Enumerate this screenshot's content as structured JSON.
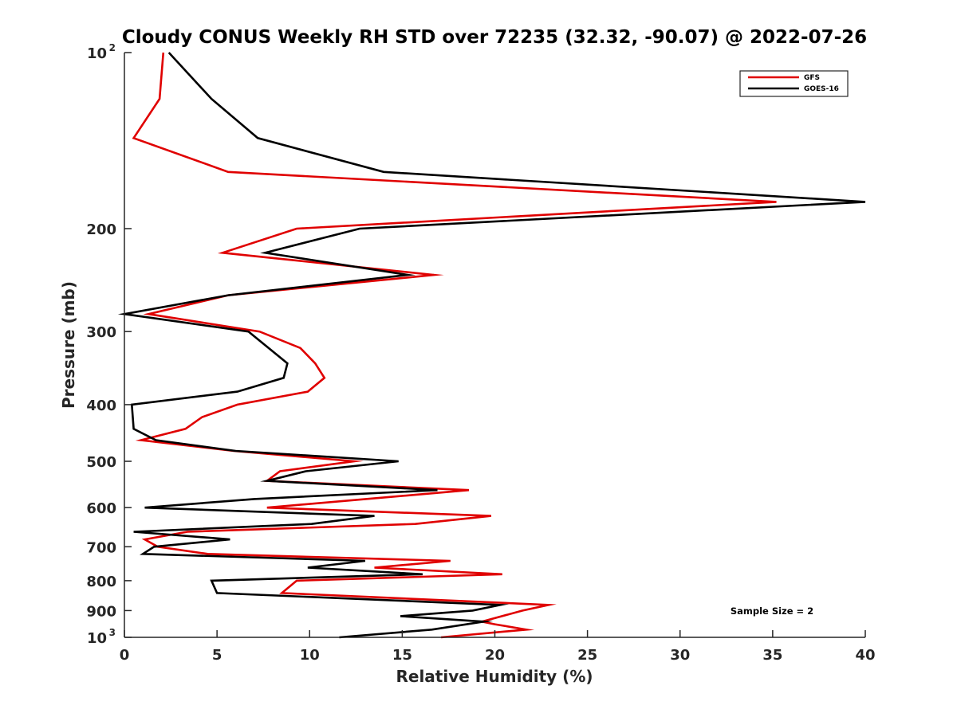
{
  "chart_data": {
    "type": "line",
    "title": "Cloudy CONUS Weekly RH STD over 72235 (32.32, -90.07) @ 2022-07-26",
    "xlabel": "Relative Humidity (%)",
    "ylabel": "Pressure (mb)",
    "xlim": [
      0,
      40
    ],
    "ylim": [
      100,
      1000
    ],
    "y_scale": "log",
    "y_reversed": true,
    "grid": false,
    "x_ticks": [
      0,
      5,
      10,
      15,
      20,
      25,
      30,
      35,
      40
    ],
    "x_tick_labels": [
      "0",
      "5",
      "10",
      "15",
      "20",
      "25",
      "30",
      "35",
      "40"
    ],
    "y_ticks": [
      100,
      200,
      300,
      400,
      500,
      600,
      700,
      800,
      900,
      1000
    ],
    "y_tick_labels": [
      {
        "base": "10",
        "exp": "2"
      },
      {
        "base": "200",
        "exp": ""
      },
      {
        "base": "300",
        "exp": ""
      },
      {
        "base": "400",
        "exp": ""
      },
      {
        "base": "500",
        "exp": ""
      },
      {
        "base": "600",
        "exp": ""
      },
      {
        "base": "700",
        "exp": ""
      },
      {
        "base": "800",
        "exp": ""
      },
      {
        "base": "900",
        "exp": ""
      },
      {
        "base": "10",
        "exp": "3"
      }
    ],
    "legend": {
      "position": "top-right",
      "entries": [
        "GFS",
        "GOES-16"
      ]
    },
    "annotation": "Sample Size = 2",
    "series": [
      {
        "name": "GFS",
        "color": "#e00000",
        "points": [
          [
            2.1,
            100
          ],
          [
            1.9,
            120
          ],
          [
            0.5,
            140
          ],
          [
            5.6,
            160
          ],
          [
            35.2,
            180
          ],
          [
            9.3,
            200
          ],
          [
            5.3,
            220
          ],
          [
            16.7,
            240
          ],
          [
            5.6,
            260
          ],
          [
            1.3,
            280
          ],
          [
            7.3,
            300
          ],
          [
            9.5,
            320
          ],
          [
            10.3,
            340
          ],
          [
            10.8,
            360
          ],
          [
            9.9,
            380
          ],
          [
            6.1,
            400
          ],
          [
            4.2,
            420
          ],
          [
            3.3,
            440
          ],
          [
            0.9,
            460
          ],
          [
            5.9,
            480
          ],
          [
            12.4,
            500
          ],
          [
            8.4,
            520
          ],
          [
            7.7,
            540
          ],
          [
            18.6,
            560
          ],
          [
            7.7,
            600
          ],
          [
            19.8,
            620
          ],
          [
            15.7,
            640
          ],
          [
            3.4,
            660
          ],
          [
            1.1,
            680
          ],
          [
            1.8,
            700
          ],
          [
            4.5,
            720
          ],
          [
            17.6,
            740
          ],
          [
            13.5,
            760
          ],
          [
            20.4,
            780
          ],
          [
            9.3,
            800
          ],
          [
            8.5,
            840
          ],
          [
            22.9,
            880
          ],
          [
            21.5,
            900
          ],
          [
            19.3,
            940
          ],
          [
            20.0,
            950
          ],
          [
            21.7,
            970
          ],
          [
            17.1,
            1000
          ]
        ]
      },
      {
        "name": "GOES-16",
        "color": "#000000",
        "points": [
          [
            2.4,
            100
          ],
          [
            4.7,
            120
          ],
          [
            7.2,
            140
          ],
          [
            14.0,
            160
          ],
          [
            40.0,
            180
          ],
          [
            12.7,
            200
          ],
          [
            7.6,
            220
          ],
          [
            15.3,
            240
          ],
          [
            5.6,
            260
          ],
          [
            0.0,
            280
          ],
          [
            6.7,
            300
          ],
          [
            8.8,
            340
          ],
          [
            8.6,
            360
          ],
          [
            6.1,
            380
          ],
          [
            0.4,
            400
          ],
          [
            0.5,
            440
          ],
          [
            1.7,
            460
          ],
          [
            6.0,
            480
          ],
          [
            14.8,
            500
          ],
          [
            9.8,
            520
          ],
          [
            7.7,
            540
          ],
          [
            16.9,
            560
          ],
          [
            7.0,
            580
          ],
          [
            1.1,
            600
          ],
          [
            13.5,
            620
          ],
          [
            10.1,
            640
          ],
          [
            0.5,
            660
          ],
          [
            5.7,
            680
          ],
          [
            1.6,
            700
          ],
          [
            1.0,
            720
          ],
          [
            13.0,
            740
          ],
          [
            9.9,
            760
          ],
          [
            16.1,
            780
          ],
          [
            4.7,
            800
          ],
          [
            5.0,
            840
          ],
          [
            20.3,
            880
          ],
          [
            18.8,
            900
          ],
          [
            14.9,
            920
          ],
          [
            19.4,
            940
          ],
          [
            16.6,
            970
          ],
          [
            11.6,
            1000
          ]
        ]
      }
    ]
  }
}
